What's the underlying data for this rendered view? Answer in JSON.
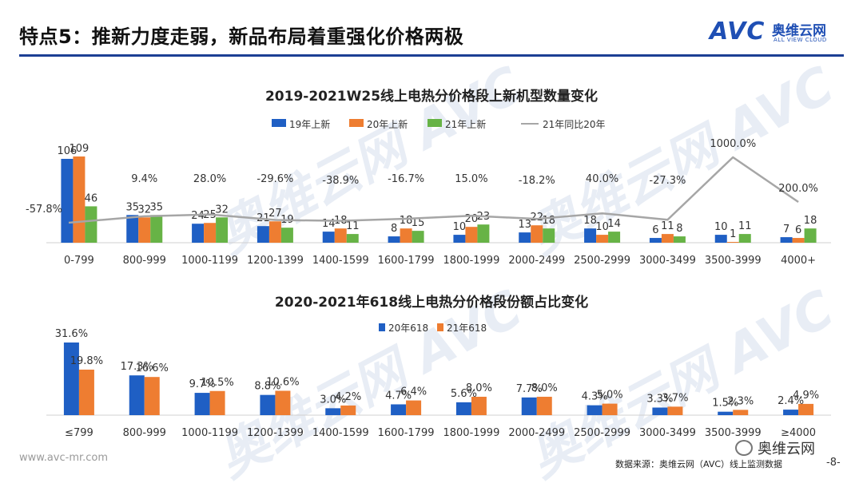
{
  "header": {
    "title": "特点5：推新力度走弱，新品布局着重强化价格两极"
  },
  "logo": {
    "brand": "AVC",
    "cn": "奥维云网",
    "en": "ALL VIEW CLOUD"
  },
  "watermark": {
    "text": "奥维云网 AVC"
  },
  "footer": {
    "url": "www.avc-mr.com",
    "source": "数据来源：奥维云网（AVC）线上监测数据",
    "wechat": "奥维云网",
    "page": "-8-"
  },
  "colors": {
    "blue": "#1f5fc4",
    "orange": "#ee7d31",
    "green": "#67b346",
    "gray": "#a6a6a6",
    "accent": "#1c3f94"
  },
  "chart_data": [
    {
      "type": "bar",
      "title": "2019-2021W25线上电热分价格段上新机型数量变化",
      "categories": [
        "0-799",
        "800-999",
        "1000-1199",
        "1200-1399",
        "1400-1599",
        "1600-1799",
        "1800-1999",
        "2000-2499",
        "2500-2999",
        "3000-3499",
        "3500-3999",
        "4000+"
      ],
      "series": [
        {
          "name": "19年上新",
          "type": "bar",
          "values": [
            106,
            35,
            24,
            21,
            14,
            8,
            10,
            13,
            18,
            6,
            10,
            7
          ]
        },
        {
          "name": "20年上新",
          "type": "bar",
          "values": [
            109,
            32,
            25,
            27,
            18,
            18,
            20,
            22,
            10,
            11,
            1,
            6
          ]
        },
        {
          "name": "21年上新",
          "type": "bar",
          "values": [
            46,
            35,
            32,
            19,
            11,
            15,
            23,
            18,
            14,
            8,
            11,
            18
          ]
        },
        {
          "name": "21年同比20年",
          "type": "line",
          "values": [
            -57.8,
            9.4,
            28.0,
            -29.6,
            -38.9,
            -16.7,
            15.0,
            -18.2,
            40.0,
            -27.3,
            1000.0,
            200.0
          ],
          "labels": [
            "-57.8%",
            "9.4%",
            "28.0%",
            "-29.6%",
            "-38.9%",
            "-16.7%",
            "15.0%",
            "-18.2%",
            "40.0%",
            "-27.3%",
            "1000.0%",
            "200.0%"
          ]
        }
      ],
      "legend": "top-center"
    },
    {
      "type": "bar",
      "title": "2020-2021年618线上电热分价格段份额占比变化",
      "categories": [
        "≤799",
        "800-999",
        "1000-1199",
        "1200-1399",
        "1400-1599",
        "1600-1799",
        "1800-1999",
        "2000-2499",
        "2500-2999",
        "3000-3499",
        "3500-3999",
        "≥4000"
      ],
      "series": [
        {
          "name": "20年618",
          "values": [
            31.6,
            17.3,
            9.7,
            8.8,
            3.0,
            4.7,
            5.6,
            7.7,
            4.3,
            3.3,
            1.5,
            2.4
          ],
          "labels": [
            "31.6%",
            "17.3%",
            "9.7%",
            "8.8%",
            "3.0%",
            "4.7%",
            "5.6%",
            "7.7%",
            "4.3%",
            "3.3%",
            "1.5%",
            "2.4%"
          ]
        },
        {
          "name": "21年618",
          "values": [
            19.8,
            16.6,
            10.5,
            10.6,
            4.2,
            6.4,
            8.0,
            8.0,
            5.0,
            3.7,
            2.3,
            4.9
          ],
          "labels": [
            "19.8%",
            "16.6%",
            "10.5%",
            "10.6%",
            "4.2%",
            "6.4%",
            "8.0%",
            "8.0%",
            "5.0%",
            "3.7%",
            "2.3%",
            "4.9%"
          ]
        }
      ],
      "legend": "top-center"
    }
  ]
}
